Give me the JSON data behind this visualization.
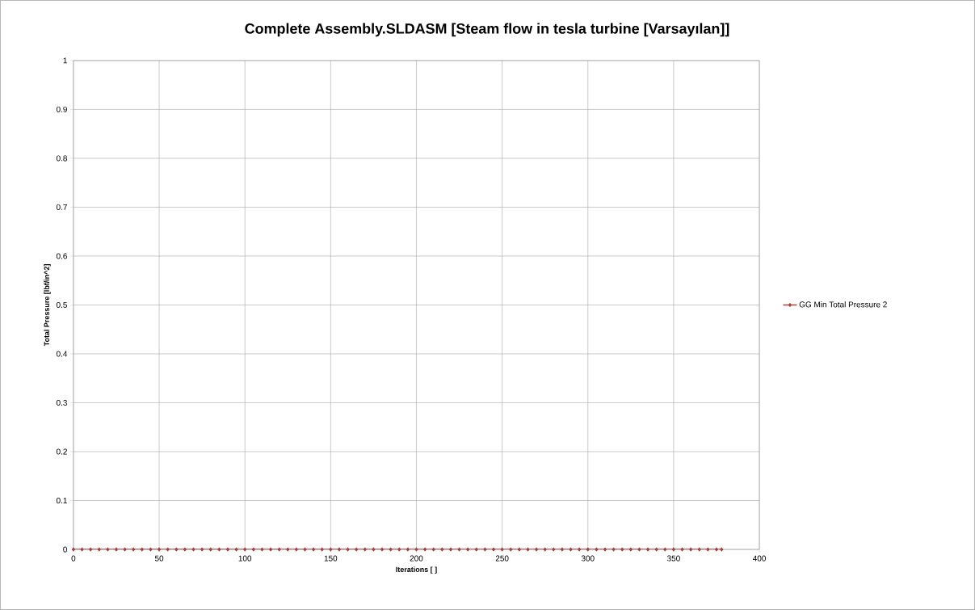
{
  "chart_data": {
    "type": "line",
    "title": "Complete Assembly.SLDASM [Steam flow in tesla turbine [Varsayılan]]",
    "xlabel": "Iterations [ ]",
    "ylabel": "Total Pressure [lbf/in^2]",
    "x": [
      0,
      5,
      10,
      15,
      20,
      25,
      30,
      35,
      40,
      45,
      50,
      55,
      60,
      65,
      70,
      75,
      80,
      85,
      90,
      95,
      100,
      105,
      110,
      115,
      120,
      125,
      130,
      135,
      140,
      145,
      150,
      155,
      160,
      165,
      170,
      175,
      180,
      185,
      190,
      195,
      200,
      205,
      210,
      215,
      220,
      225,
      230,
      235,
      240,
      245,
      250,
      255,
      260,
      265,
      270,
      275,
      280,
      285,
      290,
      295,
      300,
      305,
      310,
      315,
      320,
      325,
      330,
      335,
      340,
      345,
      350,
      355,
      360,
      365,
      370,
      375,
      378
    ],
    "series": [
      {
        "name": "GG Min Total Pressure 2",
        "color": "#a5413e",
        "values": [
          0,
          0,
          0,
          0,
          0,
          0,
          0,
          0,
          0,
          0,
          0,
          0,
          0,
          0,
          0,
          0,
          0,
          0,
          0,
          0,
          0,
          0,
          0,
          0,
          0,
          0,
          0,
          0,
          0,
          0,
          0,
          0,
          0,
          0,
          0,
          0,
          0,
          0,
          0,
          0,
          0,
          0,
          0,
          0,
          0,
          0,
          0,
          0,
          0,
          0,
          0,
          0,
          0,
          0,
          0,
          0,
          0,
          0,
          0,
          0,
          0,
          0,
          0,
          0,
          0,
          0,
          0,
          0,
          0,
          0,
          0,
          0,
          0,
          0,
          0,
          0,
          0
        ]
      }
    ],
    "xlim": [
      0,
      400
    ],
    "xticks": [
      0,
      50,
      100,
      150,
      200,
      250,
      300,
      350,
      400
    ],
    "ylim": [
      0,
      1
    ],
    "yticks": [
      0,
      0.1,
      0.2,
      0.3,
      0.4,
      0.5,
      0.6,
      0.7,
      0.8,
      0.9,
      1
    ],
    "grid": true,
    "legend": "right",
    "marker": "diamond",
    "line_style": "solid"
  }
}
